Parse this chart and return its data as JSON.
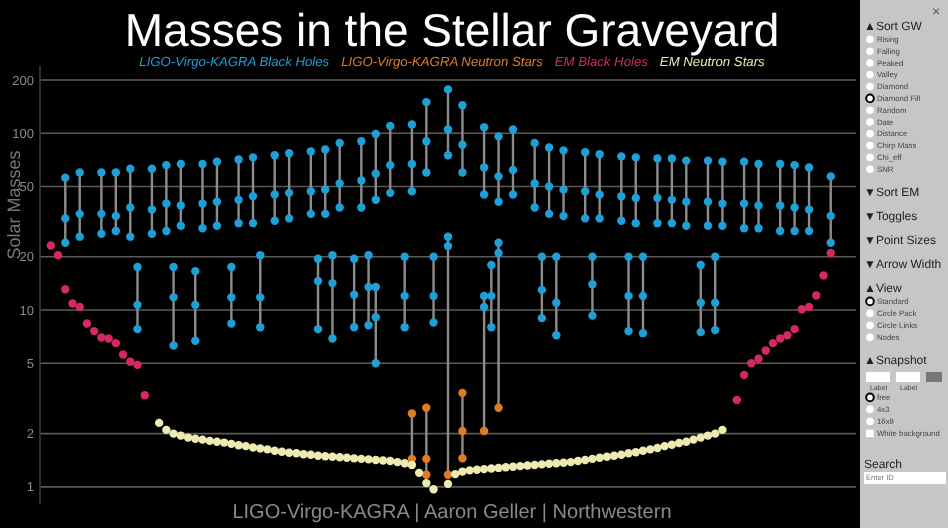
{
  "chart_data": {
    "type": "scatter",
    "title": "Masses in the Stellar Graveyard",
    "ylabel": "Solar Masses",
    "categories": [
      null,
      null,
      null,
      null,
      null,
      null,
      null,
      null,
      null,
      null,
      null,
      null,
      null,
      null,
      null,
      null,
      null,
      null,
      null,
      null,
      null,
      null,
      null,
      null,
      null,
      null,
      null,
      null,
      null,
      null,
      null,
      null,
      null,
      null,
      null,
      null,
      null,
      null,
      null,
      null,
      null,
      null,
      null,
      null,
      null,
      null,
      null,
      null,
      null,
      null,
      null,
      null,
      null,
      null,
      null,
      null,
      null,
      null,
      null,
      null,
      null,
      null,
      null,
      null,
      null,
      null,
      null,
      null,
      null,
      null,
      null,
      null,
      null,
      null,
      null,
      null,
      null,
      null,
      null,
      null,
      null,
      null,
      null,
      null,
      null,
      null,
      null,
      null,
      null,
      null,
      null,
      null,
      null,
      null,
      null,
      null,
      null,
      null,
      null,
      null,
      null,
      null,
      null,
      null,
      null,
      null,
      null,
      null,
      null,
      null,
      null,
      null,
      null
    ],
    "ylim": [
      0.8,
      240
    ],
    "log": "y",
    "yticks": [
      1,
      2,
      5,
      10,
      20,
      50,
      100,
      200
    ],
    "grid": "y",
    "tick_labels": "y",
    "marker": "circle",
    "series": [
      {
        "type": "bar",
        "color": "#8c8c8c",
        "base": [
          null,
          null,
          null,
          24,
          null,
          26,
          null,
          null,
          27,
          null,
          28,
          null,
          26,
          null,
          null,
          27,
          null,
          28,
          null,
          30,
          null,
          null,
          29,
          null,
          30,
          null,
          null,
          31,
          null,
          31,
          null,
          null,
          32,
          null,
          33,
          null,
          null,
          35,
          null,
          35,
          null,
          38,
          null,
          null,
          38,
          null,
          42,
          null,
          46,
          null,
          null,
          47,
          null,
          60,
          null,
          null,
          75,
          null,
          60,
          null,
          null,
          45,
          null,
          41,
          null,
          45,
          null,
          null,
          38,
          null,
          35,
          null,
          34,
          null,
          null,
          33,
          null,
          33,
          null,
          null,
          32,
          null,
          31,
          null,
          null,
          31,
          null,
          31,
          null,
          30,
          null,
          null,
          30,
          null,
          30,
          null,
          null,
          29,
          null,
          29,
          null,
          null,
          28,
          null,
          28,
          null,
          28,
          null,
          null,
          24,
          null,
          null,
          null
        ],
        "values": [
          null,
          null,
          null,
          32,
          null,
          34,
          null,
          null,
          33,
          null,
          32,
          null,
          37,
          null,
          null,
          36,
          null,
          38,
          null,
          37,
          null,
          null,
          38,
          null,
          39,
          null,
          null,
          40,
          null,
          42,
          null,
          null,
          43,
          null,
          44,
          null,
          null,
          44,
          null,
          46,
          null,
          50,
          null,
          null,
          52,
          null,
          57,
          null,
          64,
          null,
          null,
          65,
          null,
          90,
          null,
          null,
          102,
          null,
          84,
          null,
          null,
          63,
          null,
          55,
          null,
          60,
          null,
          null,
          50,
          null,
          48,
          null,
          46,
          null,
          null,
          45,
          null,
          43,
          null,
          null,
          42,
          null,
          42,
          null,
          null,
          41,
          null,
          41,
          null,
          40,
          null,
          null,
          40,
          null,
          39,
          null,
          null,
          40,
          null,
          38,
          null,
          null,
          39,
          null,
          38,
          null,
          36,
          null,
          null,
          33,
          null,
          null,
          null
        ]
      },
      {
        "type": "bar",
        "color": "#8c8c8c",
        "base": [
          null,
          null,
          null,
          null,
          null,
          null,
          null,
          null,
          null,
          null,
          null,
          null,
          null,
          7.8,
          null,
          null,
          null,
          null,
          6.3,
          null,
          null,
          6.7,
          null,
          null,
          null,
          null,
          8.4,
          null,
          null,
          null,
          8,
          null,
          null,
          null,
          null,
          null,
          null,
          null,
          7.8,
          null,
          6.9,
          null,
          null,
          8,
          null,
          8.2,
          5,
          null,
          null,
          null,
          8,
          null,
          null,
          null,
          8.5,
          null,
          null,
          null,
          null,
          null,
          null,
          null,
          8,
          null,
          null,
          null,
          null,
          null,
          null,
          9,
          null,
          7.2,
          null,
          null,
          null,
          null,
          9.3,
          null,
          null,
          null,
          null,
          7.6,
          null,
          7.4,
          null,
          null,
          null,
          null,
          null,
          null,
          null,
          7.5,
          null,
          7.7,
          null,
          null,
          null,
          null,
          null,
          null,
          null,
          null,
          null,
          null,
          null,
          null,
          null,
          null,
          null,
          null,
          null,
          null,
          null
        ],
        "values": [
          null,
          null,
          null,
          null,
          null,
          null,
          null,
          null,
          null,
          null,
          null,
          null,
          null,
          9.7,
          null,
          null,
          null,
          null,
          11.2,
          null,
          null,
          9.9,
          null,
          null,
          null,
          null,
          9.1,
          null,
          null,
          null,
          12.4,
          null,
          null,
          null,
          null,
          null,
          null,
          null,
          11.7,
          null,
          13.5,
          null,
          null,
          11.5,
          null,
          12.2,
          8.5,
          null,
          null,
          null,
          12,
          null,
          null,
          null,
          11.5,
          null,
          null,
          null,
          null,
          null,
          null,
          null,
          10,
          null,
          null,
          null,
          null,
          null,
          null,
          11,
          null,
          12.8,
          null,
          null,
          null,
          null,
          10.7,
          null,
          null,
          null,
          null,
          12.4,
          null,
          12.6,
          null,
          null,
          null,
          null,
          null,
          null,
          null,
          10.5,
          null,
          12.3,
          null,
          null,
          null,
          null,
          null,
          null,
          null,
          null,
          null,
          null,
          null,
          null,
          null,
          null,
          null,
          null,
          null,
          null,
          null
        ]
      },
      {
        "type": "bar",
        "color": "#8c8c8c",
        "base": [
          null,
          null,
          null,
          null,
          null,
          null,
          null,
          null,
          null,
          null,
          null,
          null,
          null,
          null,
          null,
          null,
          null,
          null,
          null,
          null,
          null,
          null,
          null,
          null,
          null,
          null,
          null,
          null,
          null,
          null,
          null,
          null,
          null,
          null,
          null,
          null,
          null,
          null,
          null,
          null,
          null,
          null,
          null,
          null,
          null,
          null,
          null,
          null,
          null,
          null,
          null,
          1.44,
          null,
          1.17,
          null,
          null,
          1.17,
          null,
          1.45,
          null,
          null,
          2.07,
          null,
          2.8,
          null,
          null,
          null,
          null,
          null,
          null,
          null,
          null,
          null,
          null,
          null,
          null,
          null,
          null,
          null,
          null,
          null,
          null,
          null,
          null,
          null,
          null,
          null,
          null,
          null,
          null,
          null,
          null,
          null,
          null,
          null,
          null,
          null,
          null,
          null,
          null,
          null,
          null,
          null,
          null,
          null,
          null,
          null,
          null,
          null,
          null,
          null,
          null,
          null
        ],
        "values": [
          null,
          null,
          null,
          null,
          null,
          null,
          null,
          null,
          null,
          null,
          null,
          null,
          null,
          null,
          null,
          null,
          null,
          null,
          null,
          null,
          null,
          null,
          null,
          null,
          null,
          null,
          null,
          null,
          null,
          null,
          null,
          null,
          null,
          null,
          null,
          null,
          null,
          null,
          null,
          null,
          null,
          null,
          null,
          null,
          null,
          null,
          null,
          null,
          null,
          null,
          null,
          1.16,
          null,
          1.63,
          null,
          null,
          24.83,
          null,
          1.95,
          null,
          null,
          9.93,
          null,
          21.2,
          null,
          null,
          null,
          null,
          null,
          null,
          null,
          null,
          null,
          null,
          null,
          null,
          null,
          null,
          null,
          null,
          null,
          null,
          null,
          null,
          null,
          null,
          null,
          null,
          null,
          null,
          null,
          null,
          null,
          null,
          null,
          null,
          null,
          null,
          null,
          null,
          null,
          null,
          null,
          null,
          null,
          null,
          null,
          null,
          null,
          null,
          null,
          null,
          null
        ]
      },
      {
        "name": "LIGO-Virgo-KAGRA Black Holes",
        "color": "#1e9fd6",
        "values": [
          null,
          null,
          null,
          56,
          null,
          60,
          null,
          null,
          60,
          null,
          60,
          null,
          63,
          null,
          null,
          63,
          null,
          66,
          null,
          67,
          null,
          null,
          67,
          null,
          69,
          null,
          null,
          71,
          null,
          73,
          null,
          null,
          75,
          null,
          77,
          null,
          null,
          79,
          null,
          81,
          null,
          88,
          null,
          null,
          90,
          null,
          99,
          null,
          110,
          null,
          null,
          112,
          null,
          150,
          null,
          null,
          177,
          null,
          144,
          null,
          null,
          108,
          null,
          96,
          null,
          105,
          null,
          null,
          88,
          null,
          83,
          null,
          80,
          null,
          null,
          78,
          null,
          76,
          null,
          null,
          74,
          null,
          73,
          null,
          null,
          72,
          null,
          72,
          null,
          70,
          null,
          null,
          70,
          null,
          69,
          null,
          null,
          69,
          null,
          67,
          null,
          null,
          67,
          null,
          66,
          null,
          64,
          null,
          null,
          57,
          null,
          null,
          null
        ]
      },
      {
        "color": "#1e9fd6",
        "values": [
          null,
          null,
          null,
          33,
          null,
          35,
          null,
          null,
          35,
          null,
          34,
          null,
          38,
          null,
          null,
          37,
          null,
          40,
          null,
          39,
          null,
          null,
          40,
          null,
          41,
          null,
          null,
          42,
          null,
          44,
          null,
          null,
          45,
          null,
          46,
          null,
          null,
          47,
          null,
          48,
          null,
          52,
          null,
          null,
          54,
          null,
          59,
          null,
          66,
          null,
          null,
          67,
          null,
          90,
          null,
          null,
          105,
          null,
          86,
          null,
          null,
          64,
          null,
          57,
          null,
          62,
          null,
          null,
          52,
          null,
          50,
          null,
          48,
          null,
          null,
          47,
          null,
          45,
          null,
          null,
          44,
          null,
          43,
          null,
          null,
          43,
          null,
          42,
          null,
          41,
          null,
          null,
          41,
          null,
          40,
          null,
          null,
          40,
          null,
          39,
          null,
          null,
          39,
          null,
          38,
          null,
          37,
          null,
          null,
          34,
          null,
          null,
          null
        ]
      },
      {
        "color": "#1e9fd6",
        "values": [
          null,
          null,
          null,
          24,
          null,
          26,
          null,
          null,
          27,
          null,
          28,
          null,
          26,
          null,
          null,
          27,
          null,
          28,
          null,
          30,
          null,
          null,
          29,
          null,
          30,
          null,
          null,
          31,
          null,
          31,
          null,
          null,
          32,
          null,
          33,
          null,
          null,
          35,
          null,
          35,
          null,
          38,
          null,
          null,
          38,
          null,
          42,
          null,
          46,
          null,
          null,
          47,
          null,
          60,
          null,
          null,
          75,
          null,
          60,
          null,
          null,
          45,
          null,
          41,
          null,
          45,
          null,
          null,
          38,
          null,
          35,
          null,
          34,
          null,
          null,
          33,
          null,
          33,
          null,
          null,
          32,
          null,
          31,
          null,
          null,
          31,
          null,
          31,
          null,
          30,
          null,
          null,
          30,
          null,
          30,
          null,
          null,
          29,
          null,
          29,
          null,
          null,
          28,
          null,
          28,
          null,
          28,
          null,
          null,
          24,
          null,
          null,
          null
        ]
      },
      {
        "color": "#1e9fd6",
        "values": [
          null,
          null,
          null,
          null,
          null,
          null,
          null,
          null,
          null,
          null,
          null,
          null,
          null,
          17.5,
          null,
          null,
          null,
          null,
          17.5,
          null,
          null,
          16.6,
          null,
          null,
          null,
          null,
          17.5,
          null,
          null,
          null,
          20.4,
          null,
          null,
          null,
          null,
          null,
          null,
          null,
          19.5,
          null,
          20.4,
          null,
          null,
          19.5,
          null,
          20.4,
          13.5,
          null,
          null,
          null,
          20,
          null,
          null,
          null,
          20,
          null,
          null,
          null,
          null,
          null,
          null,
          null,
          18,
          null,
          null,
          null,
          null,
          null,
          null,
          20,
          null,
          20,
          null,
          null,
          null,
          null,
          20,
          null,
          null,
          null,
          null,
          20,
          null,
          20,
          null,
          null,
          null,
          null,
          null,
          null,
          null,
          18,
          null,
          20,
          null,
          null,
          null,
          null,
          null,
          null,
          null,
          null,
          null,
          null,
          null,
          null,
          null,
          null,
          null,
          null,
          null,
          null,
          null
        ]
      },
      {
        "color": "#1e9fd6",
        "values": [
          null,
          null,
          null,
          null,
          null,
          null,
          null,
          null,
          null,
          null,
          null,
          null,
          null,
          10.7,
          null,
          null,
          null,
          null,
          11.8,
          null,
          null,
          10.7,
          null,
          null,
          null,
          null,
          11.8,
          null,
          null,
          null,
          11.8,
          null,
          null,
          null,
          null,
          null,
          null,
          null,
          14.6,
          null,
          14.2,
          null,
          null,
          12.2,
          null,
          13.5,
          9.1,
          null,
          null,
          null,
          12,
          null,
          null,
          null,
          12,
          null,
          null,
          null,
          null,
          null,
          null,
          null,
          12,
          null,
          null,
          null,
          null,
          null,
          null,
          13,
          null,
          11,
          null,
          null,
          null,
          null,
          14,
          null,
          null,
          null,
          null,
          12,
          null,
          12,
          null,
          null,
          null,
          null,
          null,
          null,
          null,
          11,
          null,
          11,
          null,
          null,
          null,
          null,
          null,
          null,
          null,
          null,
          null,
          null,
          null,
          null,
          null,
          null,
          null,
          null,
          null,
          null,
          null
        ]
      },
      {
        "color": "#1e9fd6",
        "values": [
          null,
          null,
          null,
          null,
          null,
          null,
          null,
          null,
          null,
          null,
          null,
          null,
          null,
          7.8,
          null,
          null,
          null,
          null,
          6.3,
          null,
          null,
          6.7,
          null,
          null,
          null,
          null,
          8.4,
          null,
          null,
          null,
          8,
          null,
          null,
          null,
          null,
          null,
          null,
          null,
          7.8,
          null,
          6.9,
          null,
          null,
          8,
          null,
          8.2,
          5,
          null,
          null,
          null,
          8,
          null,
          null,
          null,
          8.5,
          null,
          null,
          null,
          null,
          null,
          null,
          null,
          8,
          null,
          null,
          null,
          null,
          null,
          null,
          9,
          null,
          7.2,
          null,
          null,
          null,
          null,
          9.3,
          null,
          null,
          null,
          null,
          7.6,
          null,
          7.4,
          null,
          null,
          null,
          null,
          null,
          null,
          null,
          7.5,
          null,
          7.7,
          null,
          null,
          null,
          null,
          null,
          null,
          null,
          null,
          null,
          null,
          null,
          null,
          null,
          null,
          null,
          null,
          null,
          null,
          null
        ]
      },
      {
        "color": "#1e9fd6",
        "values": [
          null,
          null,
          null,
          null,
          null,
          null,
          null,
          null,
          null,
          null,
          null,
          null,
          null,
          null,
          null,
          null,
          null,
          null,
          null,
          null,
          null,
          null,
          null,
          null,
          null,
          null,
          null,
          null,
          null,
          null,
          null,
          null,
          null,
          null,
          null,
          null,
          null,
          null,
          null,
          null,
          null,
          null,
          null,
          null,
          null,
          null,
          null,
          null,
          null,
          null,
          null,
          null,
          null,
          null,
          null,
          null,
          26,
          null,
          null,
          null,
          null,
          12,
          null,
          24,
          null,
          null,
          null,
          null,
          null,
          null,
          null,
          null,
          null,
          null,
          null,
          null,
          null,
          null,
          null,
          null,
          null,
          null,
          null,
          null,
          null,
          null,
          null,
          null,
          null,
          null,
          null,
          null,
          null,
          null,
          null,
          null,
          null,
          null,
          null,
          null,
          null,
          null,
          null,
          null,
          null,
          null,
          null,
          null,
          null,
          null,
          null,
          null,
          null
        ]
      },
      {
        "color": "#1e9fd6",
        "values": [
          null,
          null,
          null,
          null,
          null,
          null,
          null,
          null,
          null,
          null,
          null,
          null,
          null,
          null,
          null,
          null,
          null,
          null,
          null,
          null,
          null,
          null,
          null,
          null,
          null,
          null,
          null,
          null,
          null,
          null,
          null,
          null,
          null,
          null,
          null,
          null,
          null,
          null,
          null,
          null,
          null,
          null,
          null,
          null,
          null,
          null,
          null,
          null,
          null,
          null,
          null,
          null,
          null,
          null,
          null,
          null,
          23,
          null,
          null,
          null,
          null,
          10.4,
          null,
          21,
          null,
          null,
          null,
          null,
          null,
          null,
          null,
          null,
          null,
          null,
          null,
          null,
          null,
          null,
          null,
          null,
          null,
          null,
          null,
          null,
          null,
          null,
          null,
          null,
          null,
          null,
          null,
          null,
          null,
          null,
          null,
          null,
          null,
          null,
          null,
          null,
          null,
          null,
          null,
          null,
          null,
          null,
          null,
          null,
          null,
          null,
          null,
          null,
          null
        ]
      },
      {
        "name": "LIGO-Virgo-KAGRA Neutron Stars",
        "color": "#e07b22",
        "values": [
          null,
          null,
          null,
          null,
          null,
          null,
          null,
          null,
          null,
          null,
          null,
          null,
          null,
          null,
          null,
          null,
          null,
          null,
          null,
          null,
          null,
          null,
          null,
          null,
          null,
          null,
          null,
          null,
          null,
          null,
          null,
          null,
          null,
          null,
          null,
          null,
          null,
          null,
          null,
          null,
          null,
          null,
          null,
          null,
          null,
          null,
          null,
          null,
          null,
          null,
          null,
          2.6,
          null,
          2.8,
          null,
          null,
          1.17,
          null,
          3.4,
          null,
          null,
          2.07,
          null,
          2.8,
          null,
          null,
          null,
          null,
          null,
          null,
          null,
          null,
          null,
          null,
          null,
          null,
          null,
          null,
          null,
          null,
          null,
          null,
          null,
          null,
          null,
          null,
          null,
          null,
          null,
          null,
          null,
          null,
          null,
          null,
          null,
          null,
          null,
          null,
          null,
          null,
          null,
          null,
          null,
          null,
          null,
          null,
          null,
          null,
          null,
          null,
          null,
          null,
          null
        ]
      },
      {
        "color": "#e07b22",
        "values": [
          null,
          null,
          null,
          null,
          null,
          null,
          null,
          null,
          null,
          null,
          null,
          null,
          null,
          null,
          null,
          null,
          null,
          null,
          null,
          null,
          null,
          null,
          null,
          null,
          null,
          null,
          null,
          null,
          null,
          null,
          null,
          null,
          null,
          null,
          null,
          null,
          null,
          null,
          null,
          null,
          null,
          null,
          null,
          null,
          null,
          null,
          null,
          null,
          null,
          null,
          null,
          1.44,
          null,
          1.44,
          null,
          null,
          null,
          null,
          2.07,
          null,
          null,
          null,
          null,
          null,
          null,
          null,
          null,
          null,
          null,
          null,
          null,
          null,
          null,
          null,
          null,
          null,
          null,
          null,
          null,
          null,
          null,
          null,
          null,
          null,
          null,
          null,
          null,
          null,
          null,
          null,
          null,
          null,
          null,
          null,
          null,
          null,
          null,
          null,
          null,
          null,
          null,
          null,
          null,
          null,
          null,
          null,
          null,
          null,
          null,
          null,
          null,
          null,
          null
        ]
      },
      {
        "color": "#e07b22",
        "values": [
          null,
          null,
          null,
          null,
          null,
          null,
          null,
          null,
          null,
          null,
          null,
          null,
          null,
          null,
          null,
          null,
          null,
          null,
          null,
          null,
          null,
          null,
          null,
          null,
          null,
          null,
          null,
          null,
          null,
          null,
          null,
          null,
          null,
          null,
          null,
          null,
          null,
          null,
          null,
          null,
          null,
          null,
          null,
          null,
          null,
          null,
          null,
          null,
          null,
          null,
          null,
          null,
          null,
          1.17,
          null,
          null,
          null,
          null,
          1.45,
          null,
          null,
          null,
          null,
          null,
          null,
          null,
          null,
          null,
          null,
          null,
          null,
          null,
          null,
          null,
          null,
          null,
          null,
          null,
          null,
          null,
          null,
          null,
          null,
          null,
          null,
          null,
          null,
          null,
          null,
          null,
          null,
          null,
          null,
          null,
          null,
          null,
          null,
          null,
          null,
          null,
          null,
          null,
          null,
          null,
          null,
          null,
          null,
          null,
          null,
          null,
          null,
          null,
          null
        ]
      },
      {
        "name": "EM Black Holes",
        "color": "#d42a5e",
        "values": [
          null,
          23.2,
          20.4,
          13.1,
          10.9,
          10.4,
          8.4,
          7.6,
          7,
          6.9,
          6.5,
          5.6,
          5.1,
          4.9,
          3.3,
          null,
          null,
          null,
          null,
          null,
          null,
          null,
          null,
          null,
          null,
          null,
          null,
          null,
          null,
          null,
          null,
          null,
          null,
          null,
          null,
          null,
          null,
          null,
          null,
          null,
          null,
          null,
          null,
          null,
          null,
          null,
          null,
          null,
          null,
          null,
          null,
          null,
          null,
          null,
          null,
          null,
          null,
          null,
          null,
          null,
          null,
          null,
          null,
          null,
          null,
          null,
          null,
          null,
          null,
          null,
          null,
          null,
          null,
          null,
          null,
          null,
          null,
          null,
          null,
          null,
          null,
          null,
          null,
          null,
          null,
          null,
          null,
          null,
          null,
          null,
          null,
          null,
          null,
          null,
          null,
          null,
          3.1,
          4.3,
          5,
          5.3,
          5.9,
          6.5,
          6.9,
          7.2,
          7.8,
          10.1,
          10.4,
          12.1,
          15.7,
          21,
          null,
          null,
          null
        ]
      },
      {
        "name": "EM Neutron Stars",
        "color": "#ecebb2",
        "values": [
          null,
          null,
          null,
          null,
          null,
          null,
          null,
          null,
          null,
          null,
          null,
          null,
          null,
          null,
          null,
          null,
          2.3,
          2.1,
          2,
          1.95,
          1.9,
          1.87,
          1.85,
          1.82,
          1.8,
          1.78,
          1.75,
          1.72,
          1.7,
          1.67,
          1.65,
          1.63,
          1.6,
          1.58,
          1.56,
          1.55,
          1.53,
          1.52,
          1.5,
          1.49,
          1.48,
          1.47,
          1.46,
          1.45,
          1.44,
          1.43,
          1.42,
          1.41,
          1.4,
          1.38,
          1.36,
          1.33,
          1.2,
          1.05,
          0.97,
          null,
          1.04,
          1.18,
          1.22,
          1.24,
          1.25,
          1.26,
          1.27,
          1.28,
          1.29,
          1.3,
          1.31,
          1.32,
          1.33,
          1.34,
          1.35,
          1.36,
          1.37,
          1.38,
          1.4,
          1.42,
          1.44,
          1.46,
          1.48,
          1.5,
          1.52,
          1.55,
          1.57,
          1.6,
          1.63,
          1.66,
          1.7,
          1.73,
          1.77,
          1.8,
          1.85,
          1.9,
          1.95,
          2,
          2.1,
          null,
          null,
          null,
          null,
          null,
          null,
          null,
          null,
          null,
          null,
          null,
          null,
          null,
          null,
          null,
          null,
          null,
          null
        ]
      }
    ],
    "annotations": [
      "LIGO-Virgo-KAGRA | Aaron Geller | Northwestern",
      "×",
      "▲Sort GW",
      "Rising",
      "Falling",
      "Peaked",
      "Valley",
      "Diamond",
      "Diamond Fill",
      "Random",
      "Date",
      "Distance",
      "Chirp Mass",
      "Chi_eff",
      "SNR",
      "▼Sort EM",
      "▼Toggles",
      "▼Point Sizes",
      "▼Arrow Width",
      "▲View",
      "Standard",
      "Circle Pack",
      "Circle Links",
      "Nodes",
      "▲Snapshot",
      "Label",
      "Label",
      "free",
      "4x3",
      "16x9",
      "White background",
      "Search",
      "Enter ID"
    ]
  }
}
